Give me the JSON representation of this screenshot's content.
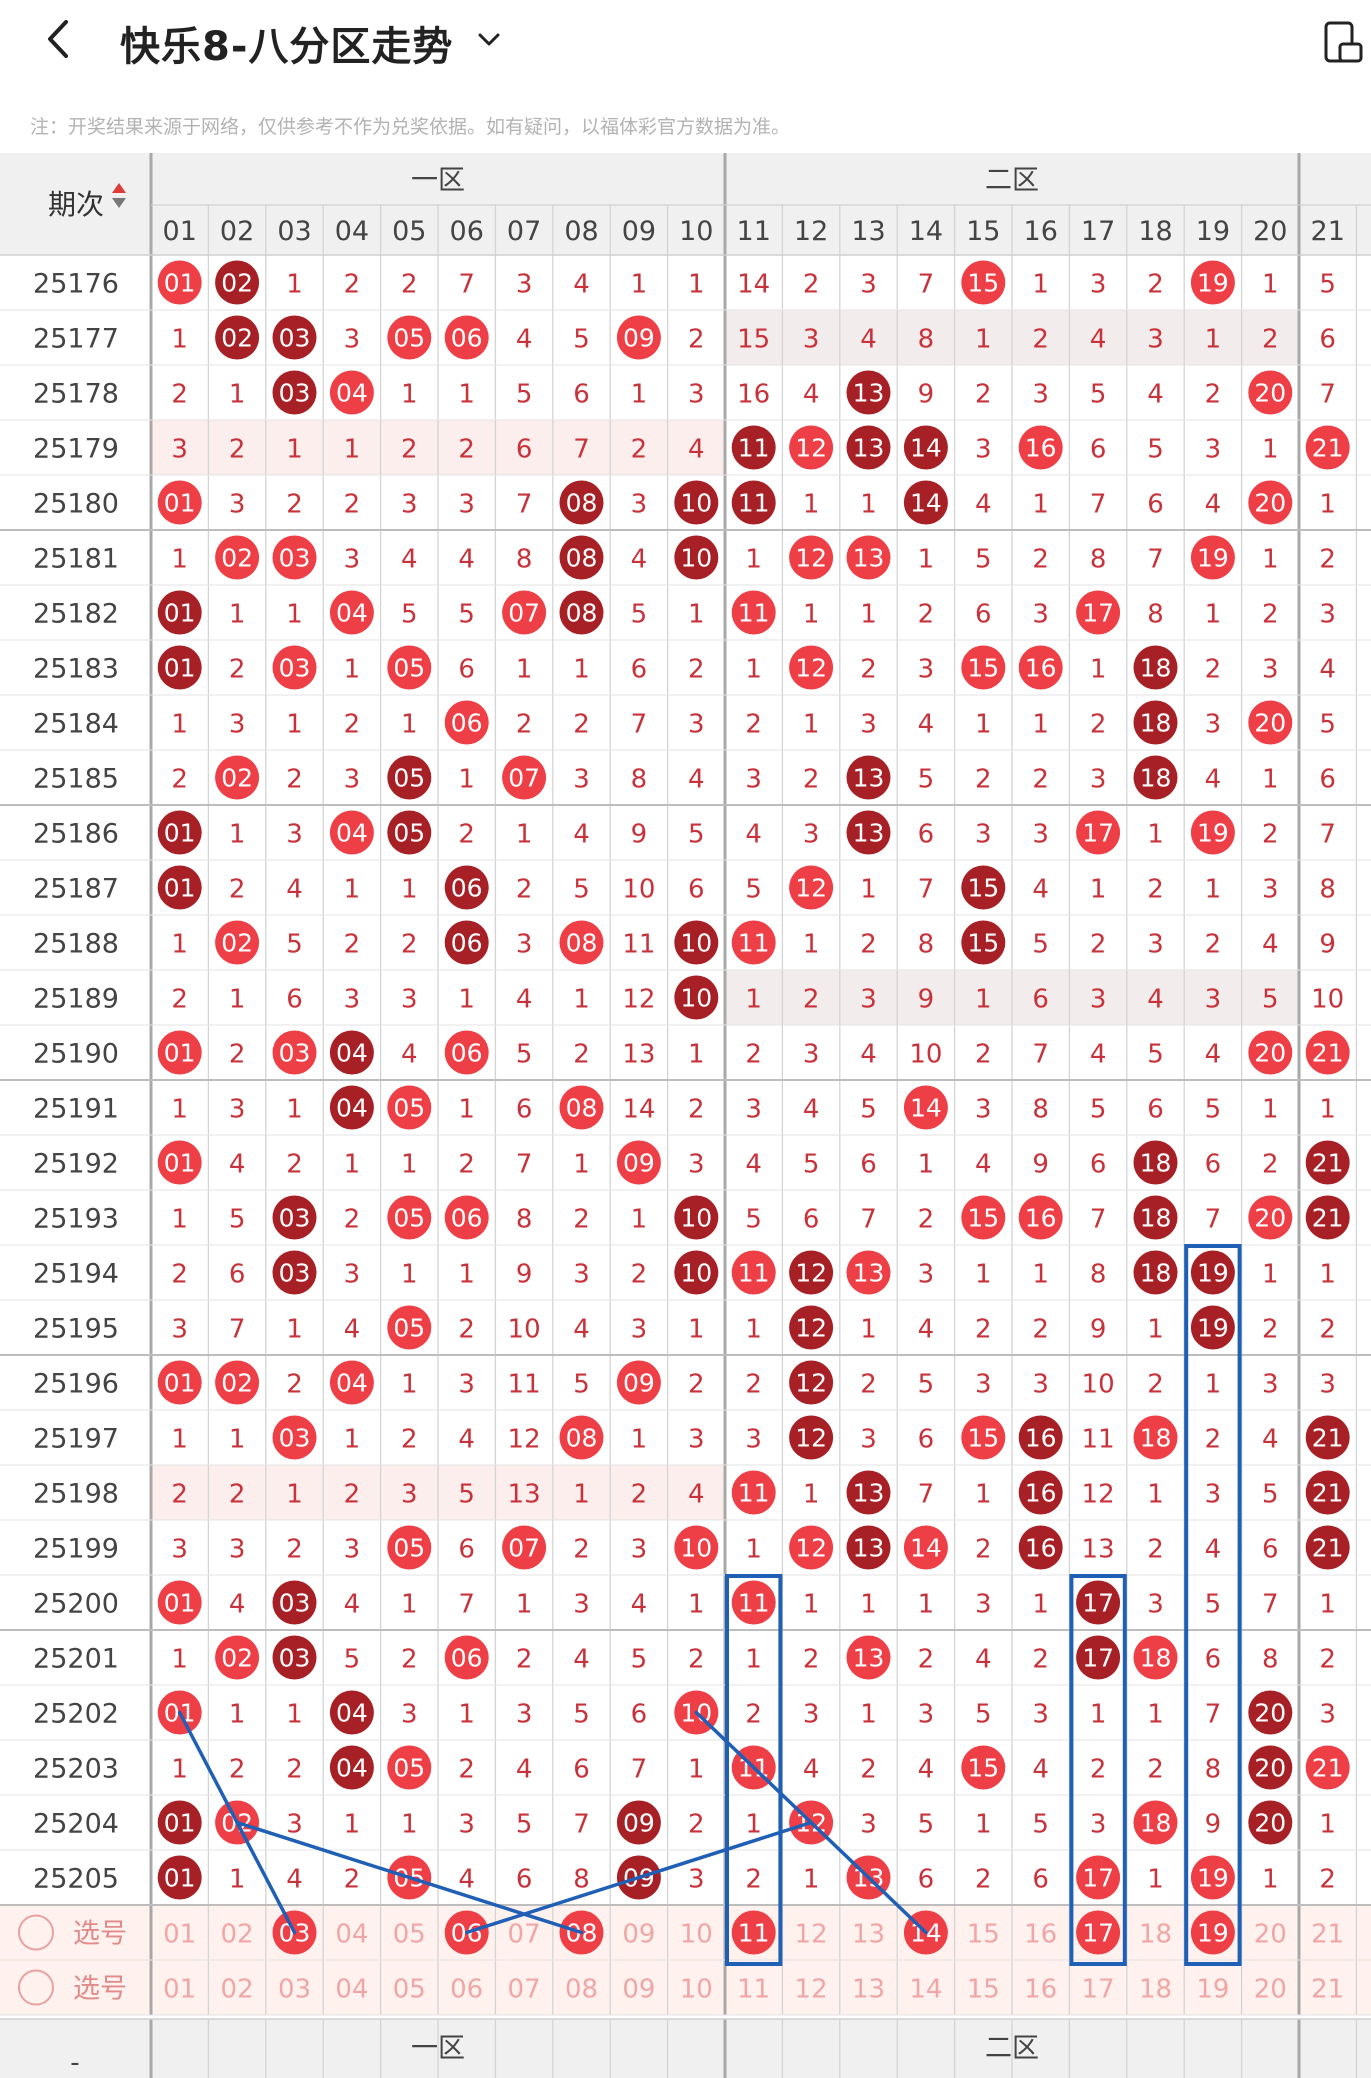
{
  "header": {
    "title": "快乐8-八分区走势",
    "note": "注：开奖结果来源于网络，仅供参考不作为兑奖依据。如有疑问，以福体彩官方数据为准。"
  },
  "table": {
    "period_header": "期次",
    "zone_labels": [
      "一区",
      "二区"
    ],
    "columns": [
      "01",
      "02",
      "03",
      "04",
      "05",
      "06",
      "07",
      "08",
      "09",
      "10",
      "11",
      "12",
      "13",
      "14",
      "15",
      "16",
      "17",
      "18",
      "19",
      "20",
      "21"
    ],
    "select_label": "选号",
    "footer_placeholder": "-",
    "rows": [
      {
        "period": "25176",
        "cells": [
          "01",
          "02",
          "1",
          "2",
          "2",
          "7",
          "3",
          "4",
          "1",
          "1",
          "14",
          "2",
          "3",
          "7",
          "15",
          "1",
          "3",
          "2",
          "19",
          "1",
          "5"
        ]
      },
      {
        "period": "25177",
        "cells": [
          "1",
          "02",
          "03",
          "3",
          "05",
          "06",
          "4",
          "5",
          "09",
          "2",
          "15",
          "3",
          "4",
          "8",
          "1",
          "2",
          "4",
          "3",
          "1",
          "2",
          "6"
        ]
      },
      {
        "period": "25178",
        "cells": [
          "2",
          "1",
          "03",
          "04",
          "1",
          "1",
          "5",
          "6",
          "1",
          "3",
          "16",
          "4",
          "13",
          "9",
          "2",
          "3",
          "5",
          "4",
          "2",
          "20",
          "7"
        ]
      },
      {
        "period": "25179",
        "cells": [
          "3",
          "2",
          "1",
          "1",
          "2",
          "2",
          "6",
          "7",
          "2",
          "4",
          "11",
          "12",
          "13",
          "14",
          "3",
          "16",
          "6",
          "5",
          "3",
          "1",
          "21"
        ]
      },
      {
        "period": "25180",
        "cells": [
          "01",
          "3",
          "2",
          "2",
          "3",
          "3",
          "7",
          "08",
          "3",
          "10",
          "11",
          "1",
          "1",
          "14",
          "4",
          "1",
          "7",
          "6",
          "4",
          "20",
          "1"
        ]
      },
      {
        "period": "25181",
        "cells": [
          "1",
          "02",
          "03",
          "3",
          "4",
          "4",
          "8",
          "08",
          "4",
          "10",
          "1",
          "12",
          "13",
          "1",
          "5",
          "2",
          "8",
          "7",
          "19",
          "1",
          "2"
        ]
      },
      {
        "period": "25182",
        "cells": [
          "01",
          "1",
          "1",
          "04",
          "5",
          "5",
          "07",
          "08",
          "5",
          "1",
          "11",
          "1",
          "1",
          "2",
          "6",
          "3",
          "17",
          "8",
          "1",
          "2",
          "3"
        ]
      },
      {
        "period": "25183",
        "cells": [
          "01",
          "2",
          "03",
          "1",
          "05",
          "6",
          "1",
          "1",
          "6",
          "2",
          "1",
          "12",
          "2",
          "3",
          "15",
          "16",
          "1",
          "18",
          "2",
          "3",
          "4"
        ]
      },
      {
        "period": "25184",
        "cells": [
          "1",
          "3",
          "1",
          "2",
          "1",
          "06",
          "2",
          "2",
          "7",
          "3",
          "2",
          "1",
          "3",
          "4",
          "1",
          "1",
          "2",
          "18",
          "3",
          "20",
          "5"
        ]
      },
      {
        "period": "25185",
        "cells": [
          "2",
          "02",
          "2",
          "3",
          "05",
          "1",
          "07",
          "3",
          "8",
          "4",
          "3",
          "2",
          "13",
          "5",
          "2",
          "2",
          "3",
          "18",
          "4",
          "1",
          "6"
        ]
      },
      {
        "period": "25186",
        "cells": [
          "01",
          "1",
          "3",
          "04",
          "05",
          "2",
          "1",
          "4",
          "9",
          "5",
          "4",
          "3",
          "13",
          "6",
          "3",
          "3",
          "17",
          "1",
          "19",
          "2",
          "7"
        ]
      },
      {
        "period": "25187",
        "cells": [
          "01",
          "2",
          "4",
          "1",
          "1",
          "06",
          "2",
          "5",
          "10",
          "6",
          "5",
          "12",
          "1",
          "7",
          "15",
          "4",
          "1",
          "2",
          "1",
          "3",
          "8"
        ]
      },
      {
        "period": "25188",
        "cells": [
          "1",
          "02",
          "5",
          "2",
          "2",
          "06",
          "3",
          "08",
          "11",
          "10",
          "11",
          "1",
          "2",
          "8",
          "15",
          "5",
          "2",
          "3",
          "2",
          "4",
          "9"
        ]
      },
      {
        "period": "25189",
        "cells": [
          "2",
          "1",
          "6",
          "3",
          "3",
          "1",
          "4",
          "1",
          "12",
          "10",
          "1",
          "2",
          "3",
          "9",
          "1",
          "6",
          "3",
          "4",
          "3",
          "5",
          "10"
        ]
      },
      {
        "period": "25190",
        "cells": [
          "01",
          "2",
          "03",
          "04",
          "4",
          "06",
          "5",
          "2",
          "13",
          "1",
          "2",
          "3",
          "4",
          "10",
          "2",
          "7",
          "4",
          "5",
          "4",
          "20",
          "21"
        ]
      },
      {
        "period": "25191",
        "cells": [
          "1",
          "3",
          "1",
          "04",
          "05",
          "1",
          "6",
          "08",
          "14",
          "2",
          "3",
          "4",
          "5",
          "14",
          "3",
          "8",
          "5",
          "6",
          "5",
          "1",
          "1"
        ]
      },
      {
        "period": "25192",
        "cells": [
          "01",
          "4",
          "2",
          "1",
          "1",
          "2",
          "7",
          "1",
          "09",
          "3",
          "4",
          "5",
          "6",
          "1",
          "4",
          "9",
          "6",
          "18",
          "6",
          "2",
          "21"
        ]
      },
      {
        "period": "25193",
        "cells": [
          "1",
          "5",
          "03",
          "2",
          "05",
          "06",
          "8",
          "2",
          "1",
          "10",
          "5",
          "6",
          "7",
          "2",
          "15",
          "16",
          "7",
          "18",
          "7",
          "20",
          "21"
        ]
      },
      {
        "period": "25194",
        "cells": [
          "2",
          "6",
          "03",
          "3",
          "1",
          "1",
          "9",
          "3",
          "2",
          "10",
          "11",
          "12",
          "13",
          "3",
          "1",
          "1",
          "8",
          "18",
          "19",
          "1",
          "1"
        ]
      },
      {
        "period": "25195",
        "cells": [
          "3",
          "7",
          "1",
          "4",
          "05",
          "2",
          "10",
          "4",
          "3",
          "1",
          "1",
          "12",
          "1",
          "4",
          "2",
          "2",
          "9",
          "1",
          "19",
          "2",
          "2"
        ]
      },
      {
        "period": "25196",
        "cells": [
          "01",
          "02",
          "2",
          "04",
          "1",
          "3",
          "11",
          "5",
          "09",
          "2",
          "2",
          "12",
          "2",
          "5",
          "3",
          "3",
          "10",
          "2",
          "1",
          "3",
          "3"
        ]
      },
      {
        "period": "25197",
        "cells": [
          "1",
          "1",
          "03",
          "1",
          "2",
          "4",
          "12",
          "08",
          "1",
          "3",
          "3",
          "12",
          "3",
          "6",
          "15",
          "16",
          "11",
          "18",
          "2",
          "4",
          "21"
        ]
      },
      {
        "period": "25198",
        "cells": [
          "2",
          "2",
          "1",
          "2",
          "3",
          "5",
          "13",
          "1",
          "2",
          "4",
          "11",
          "1",
          "13",
          "7",
          "1",
          "16",
          "12",
          "1",
          "3",
          "5",
          "21"
        ]
      },
      {
        "period": "25199",
        "cells": [
          "3",
          "3",
          "2",
          "3",
          "05",
          "6",
          "07",
          "2",
          "3",
          "10",
          "1",
          "12",
          "13",
          "14",
          "2",
          "16",
          "13",
          "2",
          "4",
          "6",
          "21"
        ]
      },
      {
        "period": "25200",
        "cells": [
          "01",
          "4",
          "03",
          "4",
          "1",
          "7",
          "1",
          "3",
          "4",
          "1",
          "11",
          "1",
          "1",
          "1",
          "3",
          "1",
          "17",
          "3",
          "5",
          "7",
          "1"
        ]
      },
      {
        "period": "25201",
        "cells": [
          "1",
          "02",
          "03",
          "5",
          "2",
          "06",
          "2",
          "4",
          "5",
          "2",
          "1",
          "2",
          "13",
          "2",
          "4",
          "2",
          "17",
          "18",
          "6",
          "8",
          "2"
        ]
      },
      {
        "period": "25202",
        "cells": [
          "01",
          "1",
          "1",
          "04",
          "3",
          "1",
          "3",
          "5",
          "6",
          "10",
          "2",
          "3",
          "1",
          "3",
          "5",
          "3",
          "1",
          "1",
          "7",
          "20",
          "3"
        ]
      },
      {
        "period": "25203",
        "cells": [
          "1",
          "2",
          "2",
          "04",
          "05",
          "2",
          "4",
          "6",
          "7",
          "1",
          "11",
          "4",
          "2",
          "4",
          "15",
          "4",
          "2",
          "2",
          "8",
          "20",
          "21"
        ]
      },
      {
        "period": "25204",
        "cells": [
          "01",
          "02",
          "3",
          "1",
          "1",
          "3",
          "5",
          "7",
          "09",
          "2",
          "1",
          "12",
          "3",
          "5",
          "1",
          "5",
          "3",
          "18",
          "9",
          "20",
          "1"
        ]
      },
      {
        "period": "25205",
        "cells": [
          "01",
          "1",
          "4",
          "2",
          "05",
          "4",
          "6",
          "8",
          "09",
          "3",
          "2",
          "1",
          "13",
          "6",
          "2",
          "6",
          "17",
          "1",
          "19",
          "1",
          "2"
        ]
      }
    ],
    "selected": [
      "03",
      "06",
      "08",
      "11",
      "14",
      "17",
      "19"
    ]
  },
  "colors": {
    "ball_red": "#ee3e46",
    "ball_dark": "#a62026",
    "miss_text": "#c8333b",
    "marker_blue": "#1f5fb5",
    "select_row_bg": "#fff2ee"
  }
}
